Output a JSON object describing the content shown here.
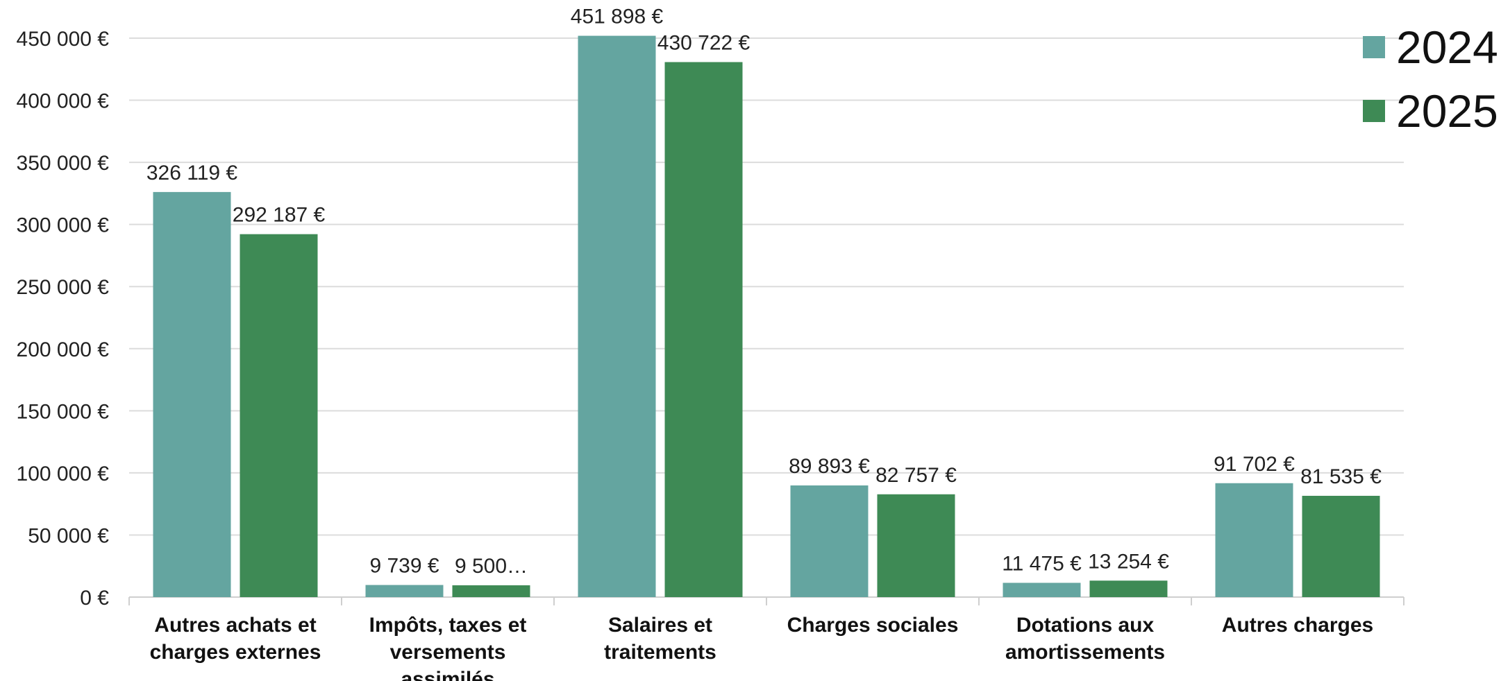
{
  "chart_data": {
    "type": "bar",
    "categories": [
      [
        "Autres achats et",
        "charges externes"
      ],
      [
        "Impôts, taxes et",
        "versements",
        "assimilés"
      ],
      [
        "Salaires et",
        "traitements"
      ],
      [
        "Charges sociales"
      ],
      [
        "Dotations aux",
        "amortissements"
      ],
      [
        "Autres charges"
      ]
    ],
    "series": [
      {
        "name": "2024",
        "color": "#64a5a0",
        "values": [
          326119,
          9739,
          451898,
          89893,
          11475,
          91702
        ],
        "labels": [
          "326 119 €",
          "9 739 €",
          "451 898 €",
          "89 893 €",
          "11 475 €",
          "91 702 €"
        ]
      },
      {
        "name": "2025",
        "color": "#3e8a55",
        "values": [
          292187,
          9500,
          430722,
          82757,
          13254,
          81535
        ],
        "labels": [
          "292 187 €",
          "9 500…",
          "430 722 €",
          "82 757 €",
          "13 254 €",
          "81 535 €"
        ]
      }
    ],
    "ylim": [
      0,
      450000
    ],
    "yticks": [
      0,
      50000,
      100000,
      150000,
      200000,
      250000,
      300000,
      350000,
      400000,
      450000
    ],
    "ytick_labels": [
      "0 €",
      "50 000 €",
      "100 000 €",
      "150 000 €",
      "200 000 €",
      "250 000 €",
      "300 000 €",
      "350 000 €",
      "400 000 €",
      "450 000 €"
    ],
    "grid": true,
    "legend": "top-right"
  }
}
